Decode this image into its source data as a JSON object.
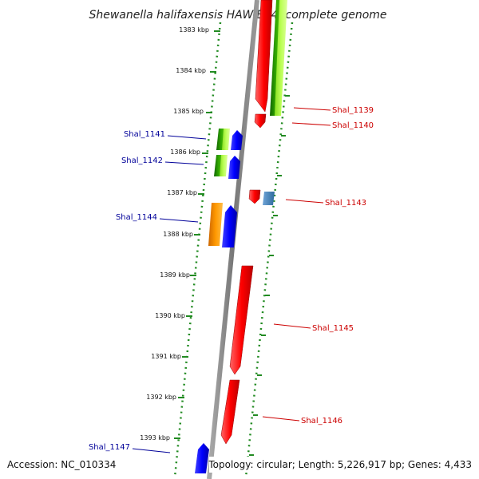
{
  "title": "Shewanella halifaxensis HAW-EB4, complete genome",
  "footer": {
    "accession": "Accession: NC_010334",
    "topology": "Topology: circular; Length: 5,226,917 bp; Genes: 4,433"
  },
  "scale_ticks": [
    "1383 kbp",
    "1384 kbp",
    "1385 kbp",
    "1386 kbp",
    "1387 kbp",
    "1388 kbp",
    "1389 kbp",
    "1390 kbp",
    "1391 kbp",
    "1392 kbp",
    "1393 kbp"
  ],
  "gene_labels": [
    {
      "name": "Shal_1139",
      "side": "right",
      "color": "#cc0000"
    },
    {
      "name": "Shal_1140",
      "side": "right",
      "color": "#cc0000"
    },
    {
      "name": "Shal_1141",
      "side": "left",
      "color": "#000099"
    },
    {
      "name": "Shal_1142",
      "side": "left",
      "color": "#000099"
    },
    {
      "name": "Shal_1143",
      "side": "right",
      "color": "#cc0000"
    },
    {
      "name": "Shal_1144",
      "side": "left",
      "color": "#000099"
    },
    {
      "name": "Shal_1145",
      "side": "right",
      "color": "#cc0000"
    },
    {
      "name": "Shal_1146",
      "side": "right",
      "color": "#cc0000"
    },
    {
      "name": "Shal_1147",
      "side": "left",
      "color": "#000099"
    }
  ],
  "colors": {
    "backbone": "#888888",
    "dotted_guide": "#228b22",
    "forward_gene": "#ff0000",
    "reverse_gene": "#0000ff",
    "green_gene": "#33aa00",
    "lightgreen_gene": "#aaee44",
    "orange_gene": "#ff9900",
    "steelblue_gene": "#4682b4"
  }
}
